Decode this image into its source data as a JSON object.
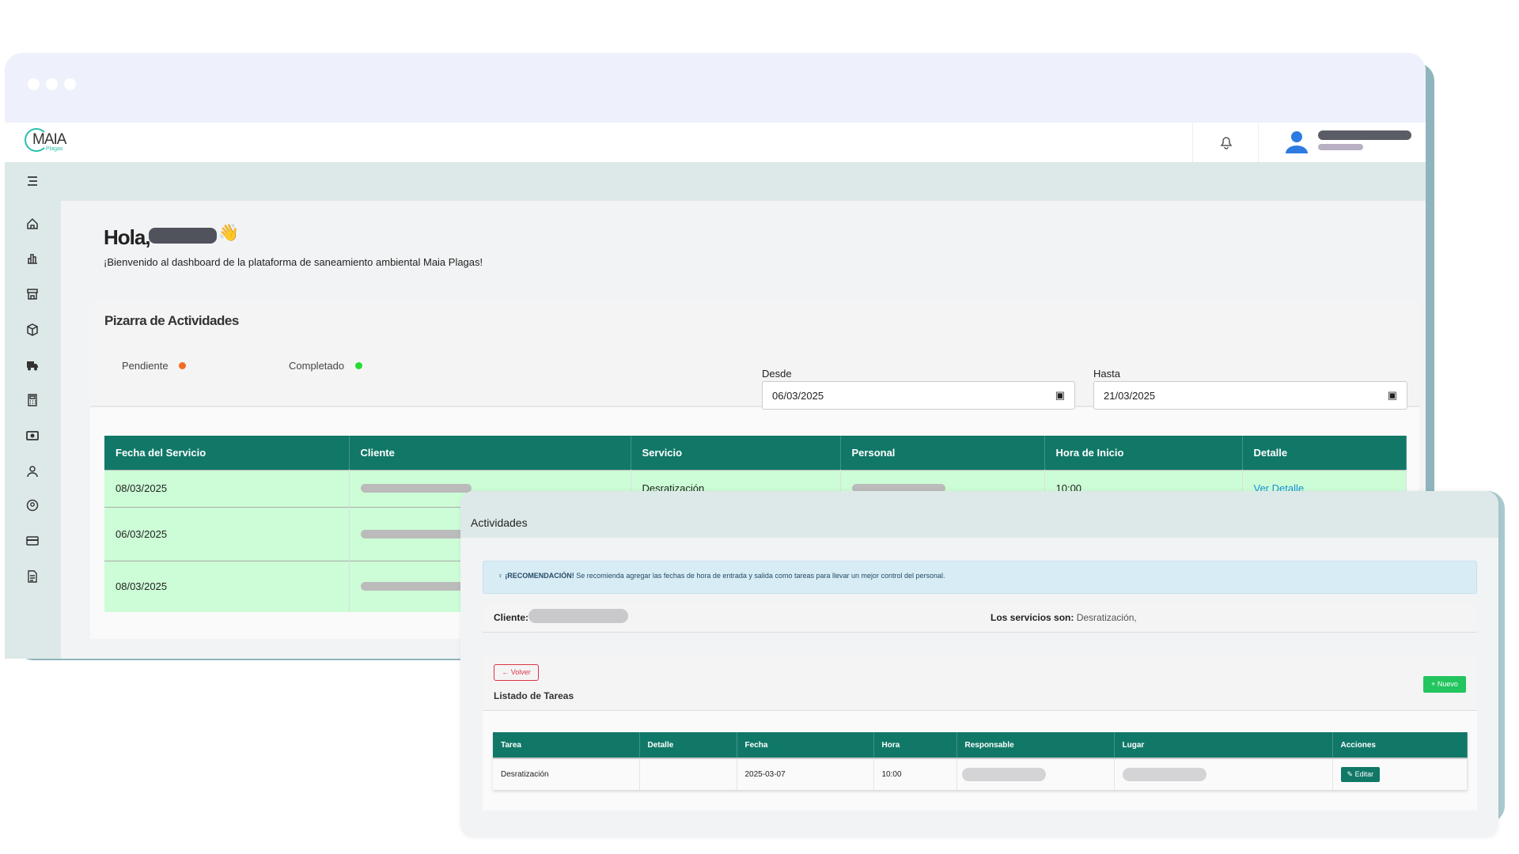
{
  "app": {
    "logo_text": "MAIA",
    "logo_sub": "Plagas"
  },
  "header": {
    "bell_icon": "bell-icon",
    "avatar_icon": "user-avatar-icon"
  },
  "sidebar": {
    "items": [
      "home",
      "chart-bar",
      "store",
      "package",
      "truck",
      "calculator",
      "money",
      "user",
      "user-circle",
      "credit-card",
      "document"
    ]
  },
  "greeting": {
    "hello": "Hola,",
    "emoji": "👋",
    "welcome": "¡Bienvenido al dashboard de la plataforma de saneamiento ambiental Maia Plagas!"
  },
  "board": {
    "title": "Pizarra de Actividades",
    "from_label": "Desde",
    "from_value": "06/03/2025",
    "to_label": "Hasta",
    "to_value": "21/03/2025",
    "legend": [
      {
        "label": "Pendiente",
        "color": "#f26b21"
      },
      {
        "label": "Completado",
        "color": "#22dd33"
      }
    ],
    "columns": [
      "Fecha del Servicio",
      "Cliente",
      "Servicio",
      "Personal",
      "Hora de Inicio",
      "Detalle"
    ],
    "rows": [
      {
        "fecha": "08/03/2025",
        "servicio": "Desratización",
        "hora": "10:00",
        "detalle": "Ver Detalle"
      },
      {
        "fecha": "06/03/2025"
      },
      {
        "fecha": "08/03/2025"
      }
    ]
  },
  "modal": {
    "title": "Actividades",
    "alert_bold": "¡RECOMENDACIÓN!",
    "alert_text": "Se recomienda agregar las fechas de hora de entrada y salida como tareas para llevar un mejor control del personal.",
    "client_label": "Cliente:",
    "services_label": "Los servicios son:",
    "services_value": "Desratización,",
    "back_label": "Volver",
    "list_title": "Listado de Tareas",
    "new_label": "Nuevo",
    "columns": [
      "Tarea",
      "Detalle",
      "Fecha",
      "Hora",
      "Responsable",
      "Lugar",
      "Acciones"
    ],
    "rows": [
      {
        "tarea": "Desratización",
        "detalle": "",
        "fecha": "2025-03-07",
        "hora": "10:00",
        "accion": "Editar"
      }
    ]
  },
  "colors": {
    "primary": "#117868",
    "row_completed": "#ccfdd6",
    "new_button": "#22c55e",
    "back_button": "#dc3545"
  }
}
